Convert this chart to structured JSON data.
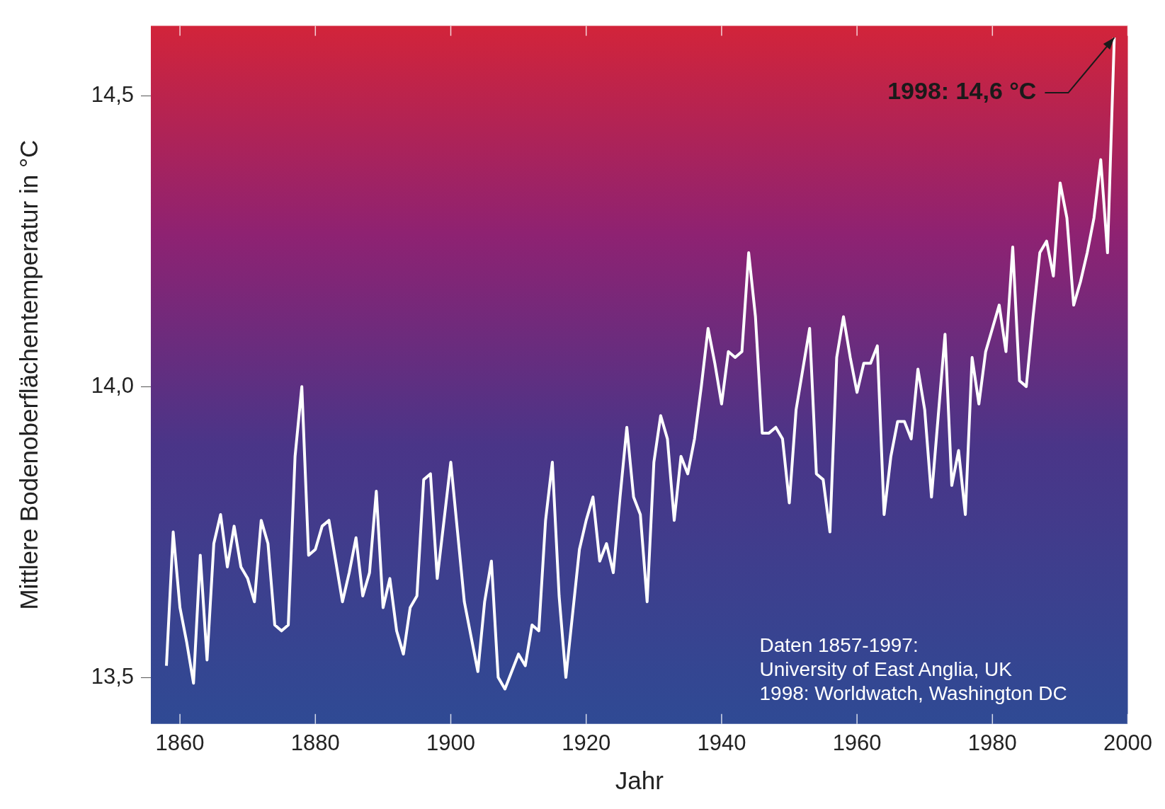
{
  "chart_data": {
    "type": "line",
    "xlabel": "Jahr",
    "ylabel": "Mittlere Bodenoberflächentemperatur in °C",
    "x": [
      1858,
      1859,
      1860,
      1861,
      1862,
      1863,
      1864,
      1865,
      1866,
      1867,
      1868,
      1869,
      1870,
      1871,
      1872,
      1873,
      1874,
      1875,
      1876,
      1877,
      1878,
      1879,
      1880,
      1881,
      1882,
      1883,
      1884,
      1885,
      1886,
      1887,
      1888,
      1889,
      1890,
      1891,
      1892,
      1893,
      1894,
      1895,
      1896,
      1897,
      1898,
      1899,
      1900,
      1901,
      1902,
      1903,
      1904,
      1905,
      1906,
      1907,
      1908,
      1909,
      1910,
      1911,
      1912,
      1913,
      1914,
      1915,
      1916,
      1917,
      1918,
      1919,
      1920,
      1921,
      1922,
      1923,
      1924,
      1925,
      1926,
      1927,
      1928,
      1929,
      1930,
      1931,
      1932,
      1933,
      1934,
      1935,
      1936,
      1937,
      1938,
      1939,
      1940,
      1941,
      1942,
      1943,
      1944,
      1945,
      1946,
      1947,
      1948,
      1949,
      1950,
      1951,
      1952,
      1953,
      1954,
      1955,
      1956,
      1957,
      1958,
      1959,
      1960,
      1961,
      1962,
      1963,
      1964,
      1965,
      1966,
      1967,
      1968,
      1969,
      1970,
      1971,
      1972,
      1973,
      1974,
      1975,
      1976,
      1977,
      1978,
      1979,
      1980,
      1981,
      1982,
      1983,
      1984,
      1985,
      1986,
      1987,
      1988,
      1989,
      1990,
      1991,
      1992,
      1993,
      1994,
      1995,
      1996,
      1997,
      1998
    ],
    "series": [
      {
        "color": "#ffffff",
        "values": [
          13.52,
          13.75,
          13.62,
          13.56,
          13.49,
          13.71,
          13.53,
          13.73,
          13.78,
          13.69,
          13.76,
          13.69,
          13.67,
          13.63,
          13.77,
          13.73,
          13.59,
          13.58,
          13.59,
          13.88,
          14.0,
          13.71,
          13.72,
          13.76,
          13.77,
          13.7,
          13.63,
          13.68,
          13.74,
          13.64,
          13.68,
          13.82,
          13.62,
          13.67,
          13.58,
          13.54,
          13.62,
          13.64,
          13.84,
          13.85,
          13.67,
          13.77,
          13.87,
          13.75,
          13.63,
          13.57,
          13.51,
          13.63,
          13.7,
          13.5,
          13.48,
          13.51,
          13.54,
          13.52,
          13.59,
          13.58,
          13.77,
          13.87,
          13.64,
          13.5,
          13.61,
          13.72,
          13.77,
          13.81,
          13.7,
          13.73,
          13.68,
          13.81,
          13.93,
          13.81,
          13.78,
          13.63,
          13.87,
          13.95,
          13.91,
          13.77,
          13.88,
          13.85,
          13.91,
          14.0,
          14.1,
          14.04,
          13.97,
          14.06,
          14.05,
          14.06,
          14.23,
          14.12,
          13.92,
          13.92,
          13.93,
          13.91,
          13.8,
          13.96,
          14.03,
          14.1,
          13.85,
          13.84,
          13.75,
          14.05,
          14.12,
          14.05,
          13.99,
          14.04,
          14.04,
          14.07,
          13.78,
          13.88,
          13.94,
          13.94,
          13.91,
          14.03,
          13.96,
          13.81,
          13.95,
          14.09,
          13.83,
          13.89,
          13.78,
          14.05,
          13.97,
          14.06,
          14.1,
          14.14,
          14.06,
          14.24,
          14.01,
          14.0,
          14.12,
          14.23,
          14.25,
          14.19,
          14.35,
          14.29,
          14.14,
          14.18,
          14.23,
          14.29,
          14.39,
          14.23,
          14.6
        ]
      }
    ],
    "xlim": [
      1855.7,
      2000
    ],
    "xticks": [
      1860,
      1880,
      1900,
      1920,
      1940,
      1960,
      1980,
      2000
    ],
    "ylim": [
      13.42,
      14.62
    ],
    "yticks": [
      {
        "value": 13.5,
        "label": "13,5"
      },
      {
        "value": 14.0,
        "label": "14,0"
      },
      {
        "value": 14.5,
        "label": "14,5"
      }
    ],
    "grid": false,
    "legend": false,
    "marker": "none",
    "line_style": "solid",
    "annotations": [
      {
        "text": "1998: 14,6 °C",
        "x": 1998,
        "y": 14.6
      },
      "Daten 1857-1997:",
      "University of East Anglia, UK",
      "1998: Worldwatch, Washington DC"
    ]
  }
}
